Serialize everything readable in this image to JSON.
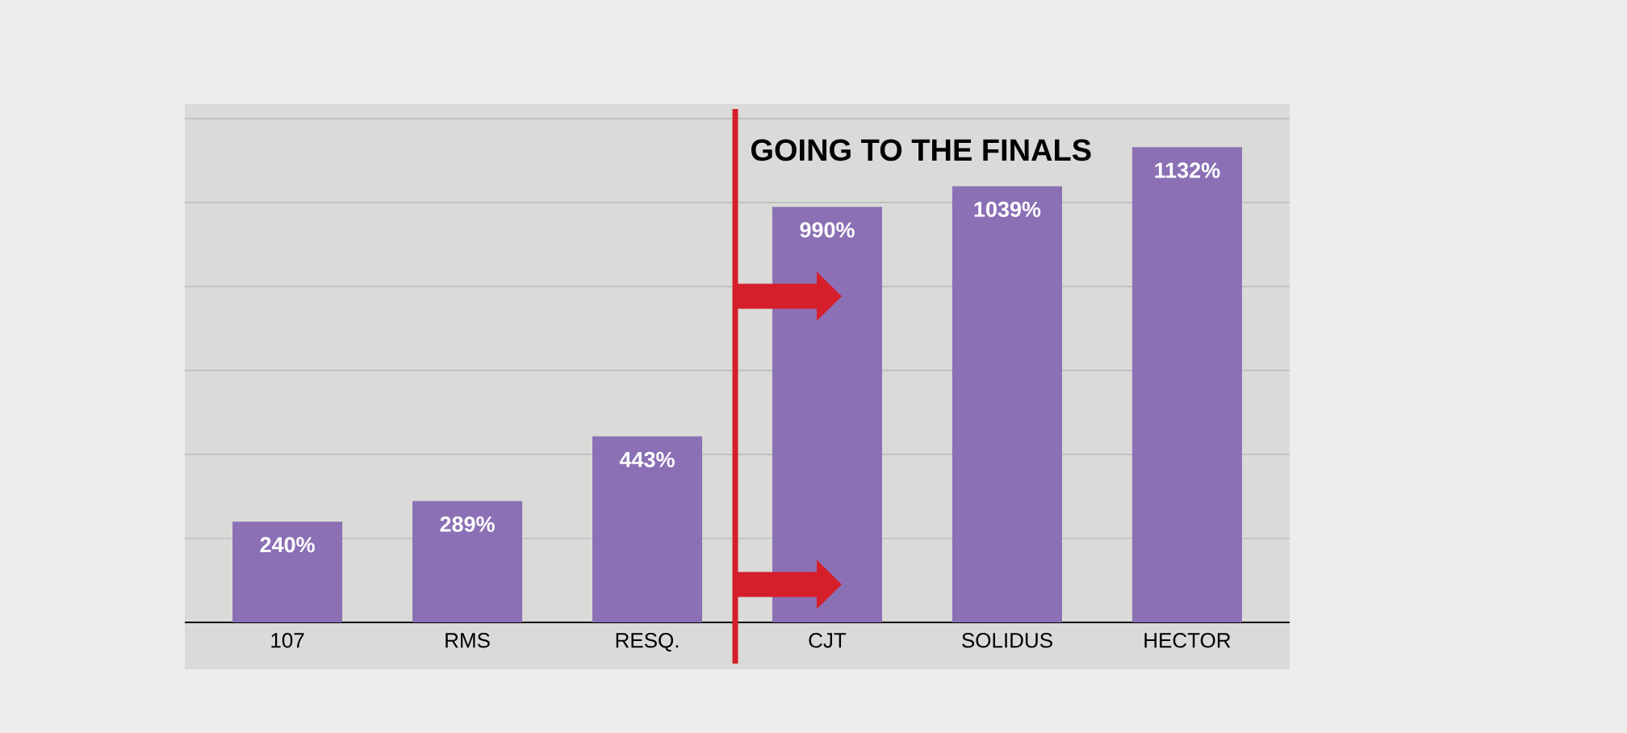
{
  "chart_data": {
    "type": "bar",
    "categories": [
      "107",
      "RMS",
      "RESQ.",
      "CJT",
      "SOLIDUS",
      "HECTOR"
    ],
    "values": [
      240,
      289,
      443,
      990,
      1039,
      1132
    ],
    "color": "#8b70b5",
    "value_labels": [
      "240%",
      "289%",
      "443%",
      "990%",
      "1039%",
      "1132%"
    ],
    "tick_labels": "x",
    "grid": "y",
    "annotations": [
      "GOING TO THE FINALS"
    ]
  }
}
